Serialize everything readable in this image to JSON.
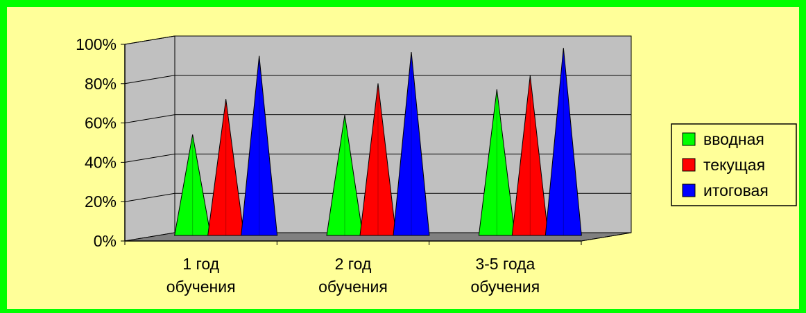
{
  "colors": {
    "frame": "#00ff00",
    "background": "#ffff99",
    "back_wall": "#c0c0c0",
    "side_wall": "#c0c0c0",
    "floor": "#808080"
  },
  "chart_data": {
    "type": "bar",
    "shape": "cone-3d",
    "title": "",
    "xlabel": "",
    "ylabel": "",
    "ylim": [
      0,
      100
    ],
    "yticks": [
      "0%",
      "20%",
      "40%",
      "60%",
      "80%",
      "100%"
    ],
    "grid": true,
    "legend_position": "right",
    "categories": [
      [
        "1 год",
        "обучения"
      ],
      [
        "2 год",
        "обучения"
      ],
      [
        "3-5 года",
        "обучения"
      ]
    ],
    "series": [
      {
        "name": "вводная",
        "color": "#00ff00",
        "values": [
          52,
          62,
          75
        ]
      },
      {
        "name": "текущая",
        "color": "#ff0000",
        "values": [
          70,
          78,
          82
        ]
      },
      {
        "name": "итоговая",
        "color": "#0000ff",
        "values": [
          92,
          94,
          96
        ]
      }
    ]
  }
}
